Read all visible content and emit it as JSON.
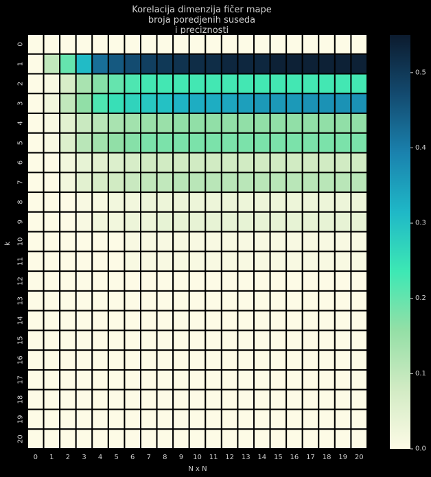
{
  "chart_data": {
    "type": "heatmap",
    "title_lines": [
      "Korelacija dimenzija fičer mape",
      "broja poredjenih suseda",
      "i preciznosti"
    ],
    "xlabel": "N x N",
    "ylabel": "k",
    "x_categories": [
      "0",
      "1",
      "2",
      "3",
      "4",
      "5",
      "6",
      "7",
      "8",
      "9",
      "10",
      "11",
      "12",
      "13",
      "14",
      "15",
      "16",
      "17",
      "18",
      "19",
      "20"
    ],
    "y_categories": [
      "0",
      "1",
      "2",
      "3",
      "4",
      "5",
      "6",
      "7",
      "8",
      "9",
      "10",
      "11",
      "12",
      "13",
      "14",
      "15",
      "16",
      "17",
      "18",
      "19",
      "20"
    ],
    "values": [
      [
        0,
        0,
        0,
        0,
        0,
        0,
        0,
        0,
        0,
        0,
        0,
        0,
        0,
        0,
        0,
        0,
        0,
        0,
        0,
        0,
        0
      ],
      [
        0,
        0.1,
        0.2,
        0.31,
        0.42,
        0.45,
        0.47,
        0.49,
        0.5,
        0.51,
        0.52,
        0.52,
        0.53,
        0.53,
        0.53,
        0.54,
        0.54,
        0.54,
        0.54,
        0.54,
        0.54
      ],
      [
        0,
        0.01,
        0.07,
        0.13,
        0.17,
        0.2,
        0.22,
        0.23,
        0.23,
        0.23,
        0.23,
        0.23,
        0.23,
        0.23,
        0.23,
        0.23,
        0.23,
        0.23,
        0.23,
        0.23,
        0.23
      ],
      [
        0,
        0.02,
        0.1,
        0.16,
        0.22,
        0.25,
        0.27,
        0.29,
        0.3,
        0.32,
        0.33,
        0.33,
        0.34,
        0.35,
        0.36,
        0.36,
        0.36,
        0.37,
        0.37,
        0.37,
        0.37
      ],
      [
        0,
        0.01,
        0.05,
        0.09,
        0.11,
        0.13,
        0.14,
        0.15,
        0.15,
        0.16,
        0.16,
        0.16,
        0.16,
        0.16,
        0.16,
        0.16,
        0.16,
        0.16,
        0.16,
        0.16,
        0.16
      ],
      [
        0,
        0.01,
        0.06,
        0.11,
        0.14,
        0.16,
        0.17,
        0.18,
        0.18,
        0.18,
        0.18,
        0.18,
        0.18,
        0.18,
        0.18,
        0.18,
        0.18,
        0.18,
        0.18,
        0.18,
        0.18
      ],
      [
        0,
        0,
        0.02,
        0.04,
        0.05,
        0.06,
        0.07,
        0.08,
        0.08,
        0.08,
        0.08,
        0.08,
        0.08,
        0.08,
        0.08,
        0.08,
        0.08,
        0.08,
        0.08,
        0.08,
        0.08
      ],
      [
        0,
        0,
        0.02,
        0.05,
        0.07,
        0.08,
        0.09,
        0.1,
        0.1,
        0.11,
        0.11,
        0.11,
        0.11,
        0.11,
        0.11,
        0.11,
        0.11,
        0.11,
        0.11,
        0.11,
        0.11
      ],
      [
        0,
        0,
        0,
        0.01,
        0.01,
        0.02,
        0.02,
        0.03,
        0.03,
        0.03,
        0.03,
        0.03,
        0.03,
        0.03,
        0.03,
        0.03,
        0.03,
        0.03,
        0.03,
        0.03,
        0.03
      ],
      [
        0,
        0,
        0,
        0.01,
        0.02,
        0.02,
        0.03,
        0.03,
        0.04,
        0.04,
        0.04,
        0.04,
        0.04,
        0.04,
        0.04,
        0.04,
        0.04,
        0.04,
        0.04,
        0.04,
        0.04
      ],
      [
        0,
        0,
        0,
        0,
        0,
        0,
        0.01,
        0.01,
        0.01,
        0.01,
        0.01,
        0.01,
        0.01,
        0.01,
        0.01,
        0.01,
        0.01,
        0.01,
        0.01,
        0.01,
        0.01
      ],
      [
        0,
        0,
        0,
        0,
        0,
        0,
        0.01,
        0.01,
        0.01,
        0.01,
        0.01,
        0.01,
        0.01,
        0.01,
        0.01,
        0.01,
        0.01,
        0.01,
        0.01,
        0.01,
        0.01
      ],
      [
        0,
        0,
        0,
        0,
        0,
        0,
        0,
        0,
        0,
        0,
        0,
        0,
        0,
        0,
        0,
        0,
        0,
        0,
        0,
        0,
        0
      ],
      [
        0,
        0,
        0,
        0,
        0,
        0,
        0,
        0,
        0,
        0,
        0,
        0,
        0,
        0,
        0,
        0,
        0,
        0,
        0,
        0,
        0
      ],
      [
        0,
        0,
        0,
        0,
        0,
        0,
        0,
        0,
        0,
        0,
        0,
        0,
        0,
        0,
        0,
        0,
        0,
        0,
        0,
        0,
        0
      ],
      [
        0,
        0,
        0,
        0,
        0,
        0,
        0,
        0,
        0,
        0,
        0,
        0,
        0,
        0,
        0,
        0,
        0,
        0,
        0,
        0,
        0
      ],
      [
        0,
        0,
        0,
        0,
        0,
        0,
        0,
        0,
        0,
        0,
        0,
        0,
        0,
        0,
        0,
        0,
        0,
        0,
        0,
        0,
        0
      ],
      [
        0,
        0,
        0,
        0,
        0,
        0,
        0,
        0,
        0,
        0,
        0,
        0,
        0,
        0,
        0,
        0,
        0,
        0,
        0,
        0,
        0
      ],
      [
        0,
        0,
        0,
        0,
        0,
        0,
        0,
        0,
        0,
        0,
        0,
        0,
        0,
        0,
        0,
        0,
        0,
        0,
        0,
        0,
        0
      ],
      [
        0,
        0,
        0,
        0,
        0,
        0,
        0,
        0,
        0,
        0,
        0,
        0,
        0,
        0,
        0,
        0,
        0,
        0,
        0,
        0,
        0
      ],
      [
        0,
        0,
        0,
        0,
        0,
        0,
        0,
        0,
        0,
        0,
        0,
        0,
        0,
        0,
        0,
        0,
        0,
        0,
        0,
        0,
        0
      ]
    ],
    "vmin": 0,
    "vmax": 0.55,
    "colorbar": {
      "ticks": [
        0.0,
        0.1,
        0.2,
        0.3,
        0.4,
        0.5
      ],
      "tick_labels": [
        "0.0",
        "0.1",
        "0.2",
        "0.3",
        "0.4",
        "0.5"
      ]
    },
    "colormap": [
      "#fdfbe6",
      "#d2ebc4",
      "#94dfa6",
      "#3de8b4",
      "#1fb8c7",
      "#1a82ae",
      "#134a6f",
      "#0c1b2e"
    ],
    "cell_border_color": "#000000",
    "background": "#000000"
  }
}
